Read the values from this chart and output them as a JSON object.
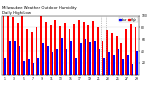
{
  "title": "Milwaukee Weather Outdoor Humidity",
  "subtitle": "Daily High/Low",
  "high_color": "#ff0000",
  "low_color": "#0000ff",
  "background_color": "#ffffff",
  "ylim": [
    0,
    100
  ],
  "ytick_vals": [
    20,
    40,
    60,
    80,
    100
  ],
  "num_days": 29,
  "high_values": [
    100,
    100,
    97,
    87,
    100,
    78,
    72,
    80,
    100,
    90,
    85,
    93,
    83,
    88,
    78,
    86,
    93,
    89,
    85,
    91,
    80,
    58,
    76,
    70,
    66,
    53,
    78,
    86,
    80
  ],
  "low_values": [
    28,
    58,
    58,
    48,
    23,
    26,
    20,
    28,
    53,
    48,
    38,
    43,
    63,
    43,
    58,
    28,
    53,
    61,
    56,
    58,
    43,
    28,
    38,
    33,
    43,
    26,
    33,
    18,
    40
  ],
  "xlabels": [
    "1",
    "",
    "3",
    "",
    "5",
    "",
    "7",
    "",
    "9",
    "",
    "11",
    "",
    "13",
    "",
    "15",
    "",
    "17",
    "",
    "19",
    "",
    "21",
    "",
    "23",
    "",
    "25",
    "",
    "27",
    "",
    "29"
  ],
  "bar_width": 0.38,
  "dashed_line_x": [
    20.5,
    21.5
  ],
  "legend_high": "High",
  "legend_low": "Low"
}
